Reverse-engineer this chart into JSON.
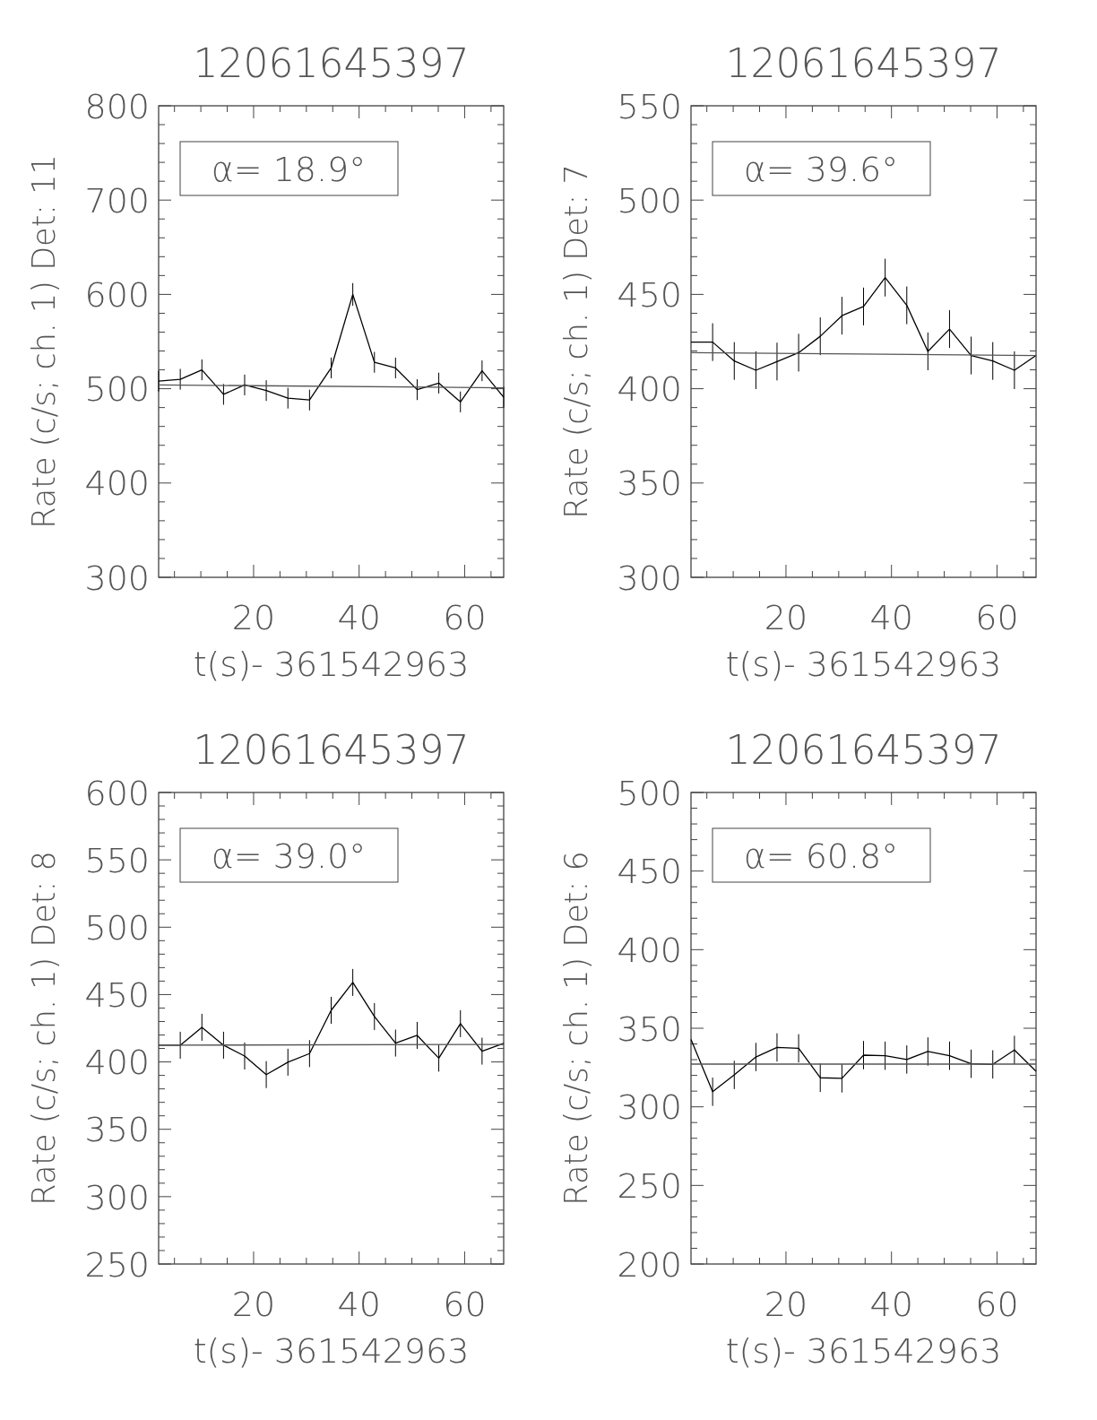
{
  "chart_data": [
    {
      "type": "line",
      "title": "12061645397",
      "xlabel": "t(s)- 361542963",
      "ylabel": "Rate (c/s; ch. 1) Det: 11",
      "annotations": [
        "α= 18.9°"
      ],
      "xlim": [
        2,
        67.4
      ],
      "ylim": [
        300,
        800
      ],
      "xticks": [
        {
          "value": 5,
          "label": null
        },
        {
          "value": 10,
          "label": null
        },
        {
          "value": 15,
          "label": null
        },
        20,
        {
          "value": 25,
          "label": null
        },
        {
          "value": 30,
          "label": null
        },
        {
          "value": 35,
          "label": null
        },
        40,
        {
          "value": 45,
          "label": null
        },
        {
          "value": 50,
          "label": null
        },
        {
          "value": 55,
          "label": null
        },
        60,
        {
          "value": 65,
          "label": null
        }
      ],
      "yticks": [
        300,
        {
          "value": 320,
          "label": null
        },
        {
          "value": 340,
          "label": null
        },
        {
          "value": 360,
          "label": null
        },
        {
          "value": 380,
          "label": null
        },
        400,
        {
          "value": 420,
          "label": null
        },
        {
          "value": 440,
          "label": null
        },
        {
          "value": 460,
          "label": null
        },
        {
          "value": 480,
          "label": null
        },
        500,
        {
          "value": 520,
          "label": null
        },
        {
          "value": 540,
          "label": null
        },
        {
          "value": 560,
          "label": null
        },
        {
          "value": 580,
          "label": null
        },
        600,
        {
          "value": 620,
          "label": null
        },
        {
          "value": 640,
          "label": null
        },
        {
          "value": 660,
          "label": null
        },
        {
          "value": 680,
          "label": null
        },
        700,
        {
          "value": 720,
          "label": null
        },
        {
          "value": 740,
          "label": null
        },
        {
          "value": 760,
          "label": null
        },
        {
          "value": 780,
          "label": null
        },
        800
      ],
      "grid": false,
      "marker": "none",
      "line_style": "solid",
      "series": [
        {
          "type": "line",
          "color": "#000000",
          "x": [
            2,
            6.1,
            10.2,
            14.3,
            18.3,
            22.4,
            26.5,
            30.6,
            34.7,
            38.8,
            42.9,
            46.9,
            51,
            55.1,
            59.2,
            63.3,
            67.4
          ],
          "values": [
            508,
            510,
            520,
            494,
            504,
            498,
            490,
            488,
            522,
            600,
            528,
            522,
            499,
            506,
            486,
            519,
            491
          ],
          "errors": [
            11,
            11,
            11,
            11,
            11,
            11,
            11,
            11,
            11,
            12,
            11,
            11,
            11,
            11,
            11,
            11,
            11
          ]
        },
        {
          "type": "line",
          "color": "#555555",
          "x": [
            2,
            67.4
          ],
          "values": [
            504,
            501
          ]
        }
      ]
    },
    {
      "type": "line",
      "title": "12061645397",
      "xlabel": "t(s)- 361542963",
      "ylabel": "Rate (c/s; ch. 1) Det: 7",
      "annotations": [
        "α= 39.6°"
      ],
      "xlim": [
        2,
        67.4
      ],
      "ylim": [
        300,
        550
      ],
      "xticks": [
        {
          "value": 5,
          "label": null
        },
        {
          "value": 10,
          "label": null
        },
        {
          "value": 15,
          "label": null
        },
        20,
        {
          "value": 25,
          "label": null
        },
        {
          "value": 30,
          "label": null
        },
        {
          "value": 35,
          "label": null
        },
        40,
        {
          "value": 45,
          "label": null
        },
        {
          "value": 50,
          "label": null
        },
        {
          "value": 55,
          "label": null
        },
        60,
        {
          "value": 65,
          "label": null
        }
      ],
      "yticks": [
        300,
        {
          "value": 310,
          "label": null
        },
        {
          "value": 320,
          "label": null
        },
        {
          "value": 330,
          "label": null
        },
        {
          "value": 340,
          "label": null
        },
        350,
        {
          "value": 360,
          "label": null
        },
        {
          "value": 370,
          "label": null
        },
        {
          "value": 380,
          "label": null
        },
        {
          "value": 390,
          "label": null
        },
        400,
        {
          "value": 410,
          "label": null
        },
        {
          "value": 420,
          "label": null
        },
        {
          "value": 430,
          "label": null
        },
        {
          "value": 440,
          "label": null
        },
        450,
        {
          "value": 460,
          "label": null
        },
        {
          "value": 470,
          "label": null
        },
        {
          "value": 480,
          "label": null
        },
        {
          "value": 490,
          "label": null
        },
        500,
        {
          "value": 510,
          "label": null
        },
        {
          "value": 520,
          "label": null
        },
        {
          "value": 530,
          "label": null
        },
        {
          "value": 540,
          "label": null
        },
        550
      ],
      "grid": false,
      "marker": "none",
      "line_style": "solid",
      "series": [
        {
          "type": "line",
          "color": "#000000",
          "x": [
            2,
            6.1,
            10.2,
            14.3,
            18.3,
            22.4,
            26.5,
            30.6,
            34.7,
            38.8,
            42.9,
            46.9,
            51,
            55.1,
            59.2,
            63.3,
            67.4
          ],
          "values": [
            424.7,
            424.7,
            414.7,
            409.8,
            414.4,
            419.1,
            427.8,
            438.7,
            443.6,
            458.9,
            444.2,
            419.8,
            431.6,
            417.6,
            414.7,
            409.8,
            417.6
          ],
          "errors": [
            null,
            10,
            10,
            10,
            10,
            10,
            10,
            10,
            10,
            10,
            10,
            10,
            10,
            10,
            10,
            10,
            null
          ]
        },
        {
          "type": "line",
          "color": "#555555",
          "x": [
            2,
            67.4
          ],
          "values": [
            419.1,
            417.6
          ]
        }
      ]
    },
    {
      "type": "line",
      "title": "12061645397",
      "xlabel": "t(s)- 361542963",
      "ylabel": "Rate (c/s; ch. 1) Det: 8",
      "annotations": [
        "α= 39.0°"
      ],
      "xlim": [
        2,
        67.4
      ],
      "ylim": [
        250,
        600
      ],
      "xticks": [
        {
          "value": 5,
          "label": null
        },
        {
          "value": 10,
          "label": null
        },
        {
          "value": 15,
          "label": null
        },
        20,
        {
          "value": 25,
          "label": null
        },
        {
          "value": 30,
          "label": null
        },
        {
          "value": 35,
          "label": null
        },
        40,
        {
          "value": 45,
          "label": null
        },
        {
          "value": 50,
          "label": null
        },
        {
          "value": 55,
          "label": null
        },
        60,
        {
          "value": 65,
          "label": null
        }
      ],
      "yticks": [
        250,
        {
          "value": 260,
          "label": null
        },
        {
          "value": 270,
          "label": null
        },
        {
          "value": 280,
          "label": null
        },
        {
          "value": 290,
          "label": null
        },
        300,
        {
          "value": 310,
          "label": null
        },
        {
          "value": 320,
          "label": null
        },
        {
          "value": 330,
          "label": null
        },
        {
          "value": 340,
          "label": null
        },
        350,
        {
          "value": 360,
          "label": null
        },
        {
          "value": 370,
          "label": null
        },
        {
          "value": 380,
          "label": null
        },
        {
          "value": 390,
          "label": null
        },
        400,
        {
          "value": 410,
          "label": null
        },
        {
          "value": 420,
          "label": null
        },
        {
          "value": 430,
          "label": null
        },
        {
          "value": 440,
          "label": null
        },
        450,
        {
          "value": 460,
          "label": null
        },
        {
          "value": 470,
          "label": null
        },
        {
          "value": 480,
          "label": null
        },
        {
          "value": 490,
          "label": null
        },
        500,
        {
          "value": 510,
          "label": null
        },
        {
          "value": 520,
          "label": null
        },
        {
          "value": 530,
          "label": null
        },
        {
          "value": 540,
          "label": null
        },
        550,
        {
          "value": 560,
          "label": null
        },
        {
          "value": 570,
          "label": null
        },
        {
          "value": 580,
          "label": null
        },
        {
          "value": 590,
          "label": null
        },
        600
      ],
      "grid": false,
      "marker": "none",
      "line_style": "solid",
      "series": [
        {
          "type": "line",
          "color": "#000000",
          "x": [
            2,
            6.1,
            10.2,
            14.3,
            18.3,
            22.4,
            26.5,
            30.6,
            34.7,
            38.8,
            42.9,
            46.9,
            51,
            55.1,
            59.2,
            63.3,
            67.4
          ],
          "values": [
            412.4,
            412.4,
            425.7,
            412.4,
            404.4,
            390.6,
            399.8,
            406.2,
            438.3,
            459,
            433.7,
            414,
            419.7,
            402.8,
            428.4,
            408,
            413.8
          ],
          "errors": [
            null,
            10,
            10,
            10,
            10,
            10,
            10,
            10,
            10,
            10,
            10,
            10,
            10,
            10,
            10,
            10,
            null
          ]
        },
        {
          "type": "line",
          "color": "#555555",
          "x": [
            2,
            67.4
          ],
          "values": [
            412.4,
            413
          ]
        }
      ]
    },
    {
      "type": "line",
      "title": "12061645397",
      "xlabel": "t(s)- 361542963",
      "ylabel": "Rate (c/s; ch. 1) Det: 6",
      "annotations": [
        "α= 60.8°"
      ],
      "xlim": [
        2,
        67.4
      ],
      "ylim": [
        200,
        500
      ],
      "xticks": [
        {
          "value": 5,
          "label": null
        },
        {
          "value": 10,
          "label": null
        },
        {
          "value": 15,
          "label": null
        },
        20,
        {
          "value": 25,
          "label": null
        },
        {
          "value": 30,
          "label": null
        },
        {
          "value": 35,
          "label": null
        },
        40,
        {
          "value": 45,
          "label": null
        },
        {
          "value": 50,
          "label": null
        },
        {
          "value": 55,
          "label": null
        },
        60,
        {
          "value": 65,
          "label": null
        }
      ],
      "yticks": [
        200,
        {
          "value": 210,
          "label": null
        },
        {
          "value": 220,
          "label": null
        },
        {
          "value": 230,
          "label": null
        },
        {
          "value": 240,
          "label": null
        },
        250,
        {
          "value": 260,
          "label": null
        },
        {
          "value": 270,
          "label": null
        },
        {
          "value": 280,
          "label": null
        },
        {
          "value": 290,
          "label": null
        },
        300,
        {
          "value": 310,
          "label": null
        },
        {
          "value": 320,
          "label": null
        },
        {
          "value": 330,
          "label": null
        },
        {
          "value": 340,
          "label": null
        },
        350,
        {
          "value": 360,
          "label": null
        },
        {
          "value": 370,
          "label": null
        },
        {
          "value": 380,
          "label": null
        },
        {
          "value": 390,
          "label": null
        },
        400,
        {
          "value": 410,
          "label": null
        },
        {
          "value": 420,
          "label": null
        },
        {
          "value": 430,
          "label": null
        },
        {
          "value": 440,
          "label": null
        },
        450,
        {
          "value": 460,
          "label": null
        },
        {
          "value": 470,
          "label": null
        },
        {
          "value": 480,
          "label": null
        },
        {
          "value": 490,
          "label": null
        },
        500
      ],
      "grid": false,
      "marker": "none",
      "line_style": "solid",
      "series": [
        {
          "type": "line",
          "color": "#000000",
          "x": [
            2,
            6.1,
            10.2,
            14.3,
            18.3,
            22.4,
            26.5,
            30.6,
            34.7,
            38.8,
            42.9,
            46.9,
            51,
            55.1,
            59.2,
            63.3,
            67.4
          ],
          "values": [
            342.9,
            309.6,
            320.3,
            331.7,
            337.8,
            337.2,
            318.5,
            318.1,
            332.9,
            332.5,
            330.1,
            335.2,
            332.5,
            327.4,
            327,
            336.2,
            322.6
          ],
          "errors": [
            null,
            9,
            9,
            9,
            9,
            9,
            9,
            9,
            9,
            9,
            9,
            9,
            9,
            9,
            9,
            9,
            null
          ]
        },
        {
          "type": "line",
          "color": "#555555",
          "x": [
            2,
            67.4
          ],
          "values": [
            327.2,
            327.2
          ]
        }
      ]
    }
  ]
}
